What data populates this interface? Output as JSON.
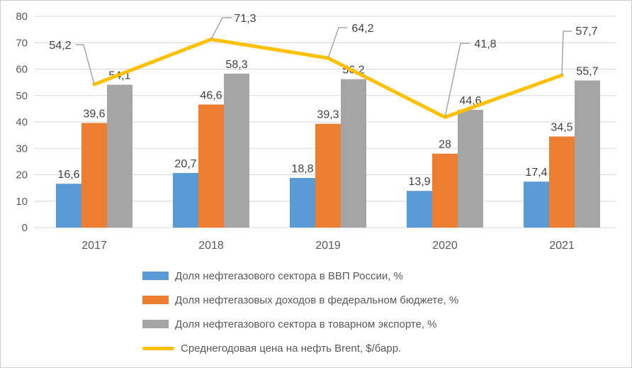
{
  "chart_data": {
    "type": "bar",
    "title": "",
    "xlabel": "",
    "ylabel": "",
    "categories": [
      "2017",
      "2018",
      "2019",
      "2020",
      "2021"
    ],
    "series": [
      {
        "name": "Доля нефтегазового сектора в ВВП России, %",
        "kind": "bar",
        "color": "#5B9BD5",
        "values": [
          16.6,
          20.7,
          18.8,
          13.9,
          17.4
        ]
      },
      {
        "name": "Доля нефтегазовых доходов в федеральном бюджете, %",
        "kind": "bar",
        "color": "#ED7D31",
        "values": [
          39.6,
          46.6,
          39.3,
          28,
          34.5
        ]
      },
      {
        "name": "Доля нефтегазового сектора в товарном экспорте, %",
        "kind": "bar",
        "color": "#A5A5A5",
        "values": [
          54.1,
          58.3,
          56.2,
          44.6,
          55.7
        ]
      },
      {
        "name": "Среднегодовая цена на нефть Brent, $/барр.",
        "kind": "line",
        "color": "#FFC000",
        "values": [
          54.2,
          71.3,
          64.2,
          41.8,
          57.7
        ]
      }
    ],
    "ylim": [
      0,
      80
    ],
    "yticks": [
      0,
      10,
      20,
      30,
      40,
      50,
      60,
      70,
      80
    ],
    "grid": true,
    "legend_position": "bottom-left",
    "decimal_separator": ",",
    "data_labels": true
  },
  "style": {
    "grid_color": "#D9D9D9",
    "axis_text_color": "#595959",
    "data_label_color": "#404040",
    "leader_line_color": "#A6A6A6",
    "frame_border_color": "#CFCDCD",
    "background": "#FFFFFF"
  }
}
